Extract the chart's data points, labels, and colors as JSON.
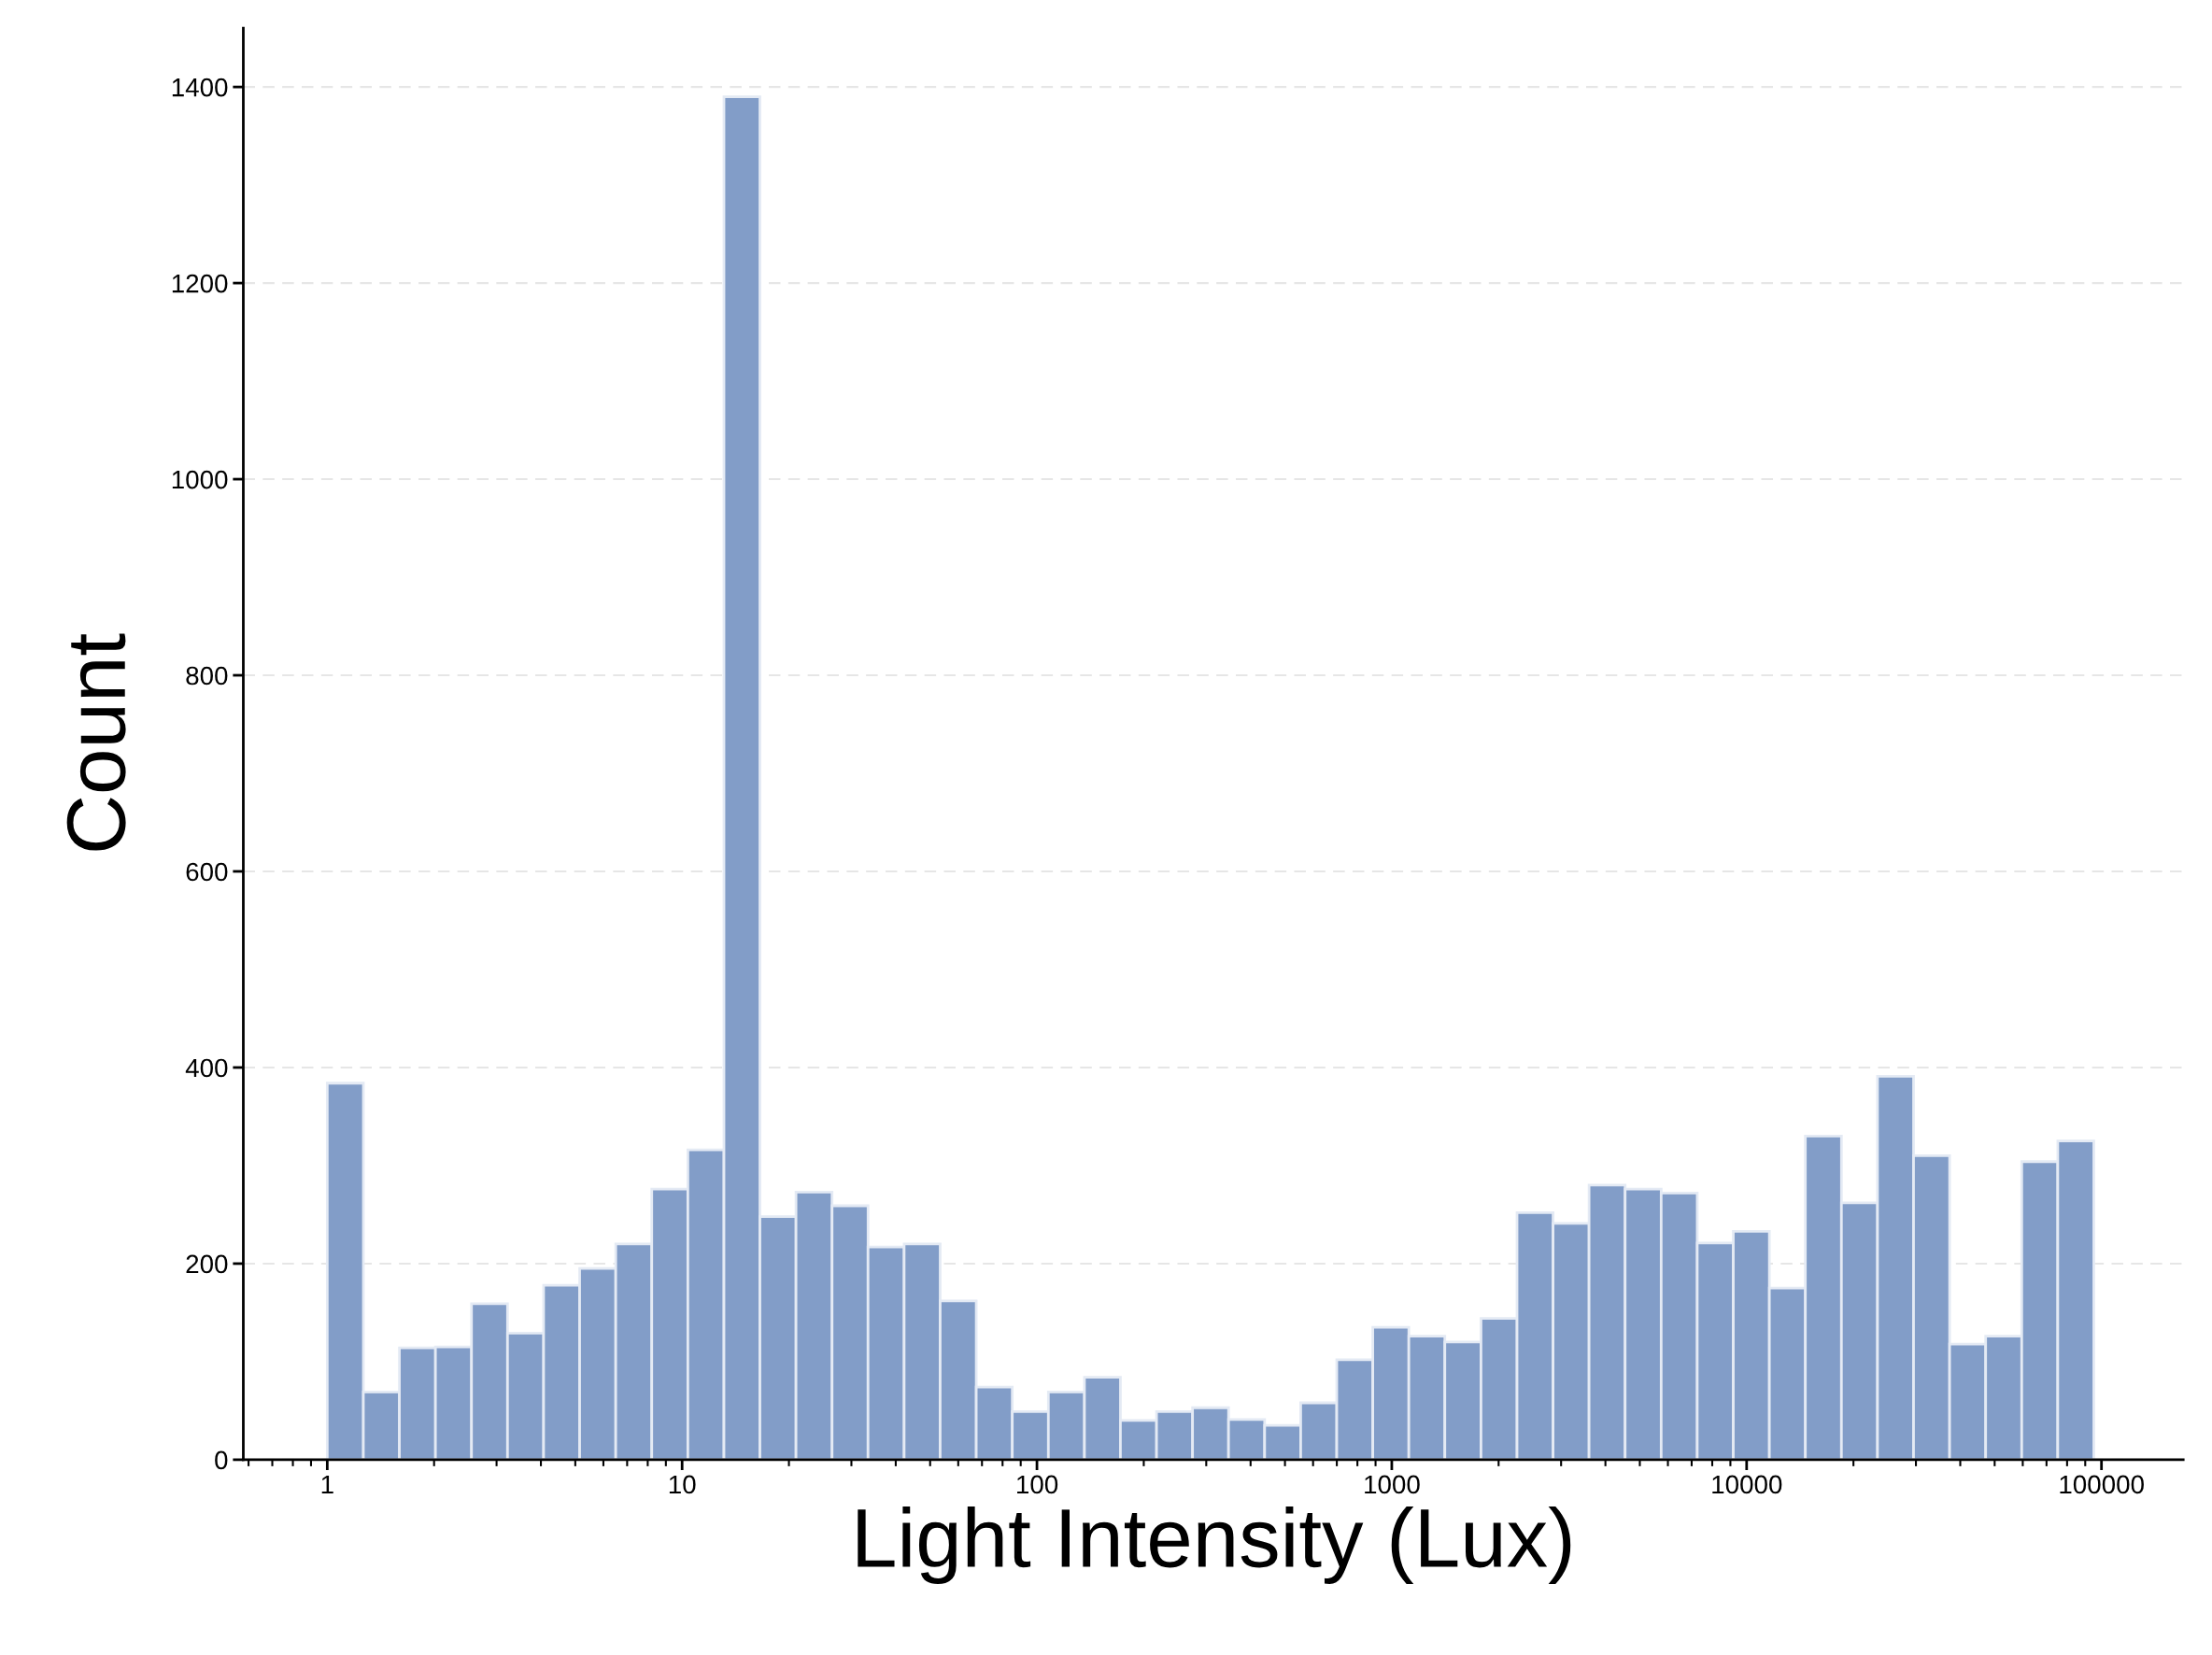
{
  "chart_data": {
    "type": "histogram",
    "xlabel": "Light Intensity (Lux)",
    "ylabel": "Count",
    "color": "#829dc8",
    "bins": [
      1,
      1.264,
      1.597,
      2.018,
      2.55,
      3.221,
      4.071,
      5.144,
      6.501,
      8.213,
      10.38,
      13.12,
      16.57,
      20.94,
      26.46,
      33.42,
      42.24,
      53.37,
      67.44,
      85.22,
      107.7,
      136.1,
      171.9,
      217.3,
      274.5,
      346.7,
      438.2,
      553.7,
      699.7,
      884.1,
      1117,
      1411,
      1784,
      2254,
      2848,
      3597,
      4546,
      5744,
      7258,
      9172,
      11590,
      14640,
      18500,
      23380,
      29540,
      37330,
      47170,
      59600,
      75310,
      95160
    ],
    "values": [
      384,
      69,
      114,
      115,
      159,
      129,
      178,
      195,
      220,
      276,
      316,
      1390,
      248,
      273,
      259,
      217,
      220,
      162,
      74,
      49,
      69,
      84,
      40,
      49,
      53,
      41,
      35,
      58,
      102,
      135,
      126,
      120,
      144,
      252,
      241,
      280,
      276,
      272,
      221,
      233,
      175,
      330,
      262,
      391,
      310,
      118,
      126,
      304,
      325
    ],
    "log": "x",
    "xlim": [
      0.58,
      170000
    ],
    "xticks": [
      1,
      10,
      100,
      1000,
      10000,
      100000
    ],
    "ylim": [
      0,
      1460
    ],
    "yticks": [
      0,
      200,
      400,
      600,
      800,
      1000,
      1200,
      1400
    ],
    "grid": "y"
  }
}
